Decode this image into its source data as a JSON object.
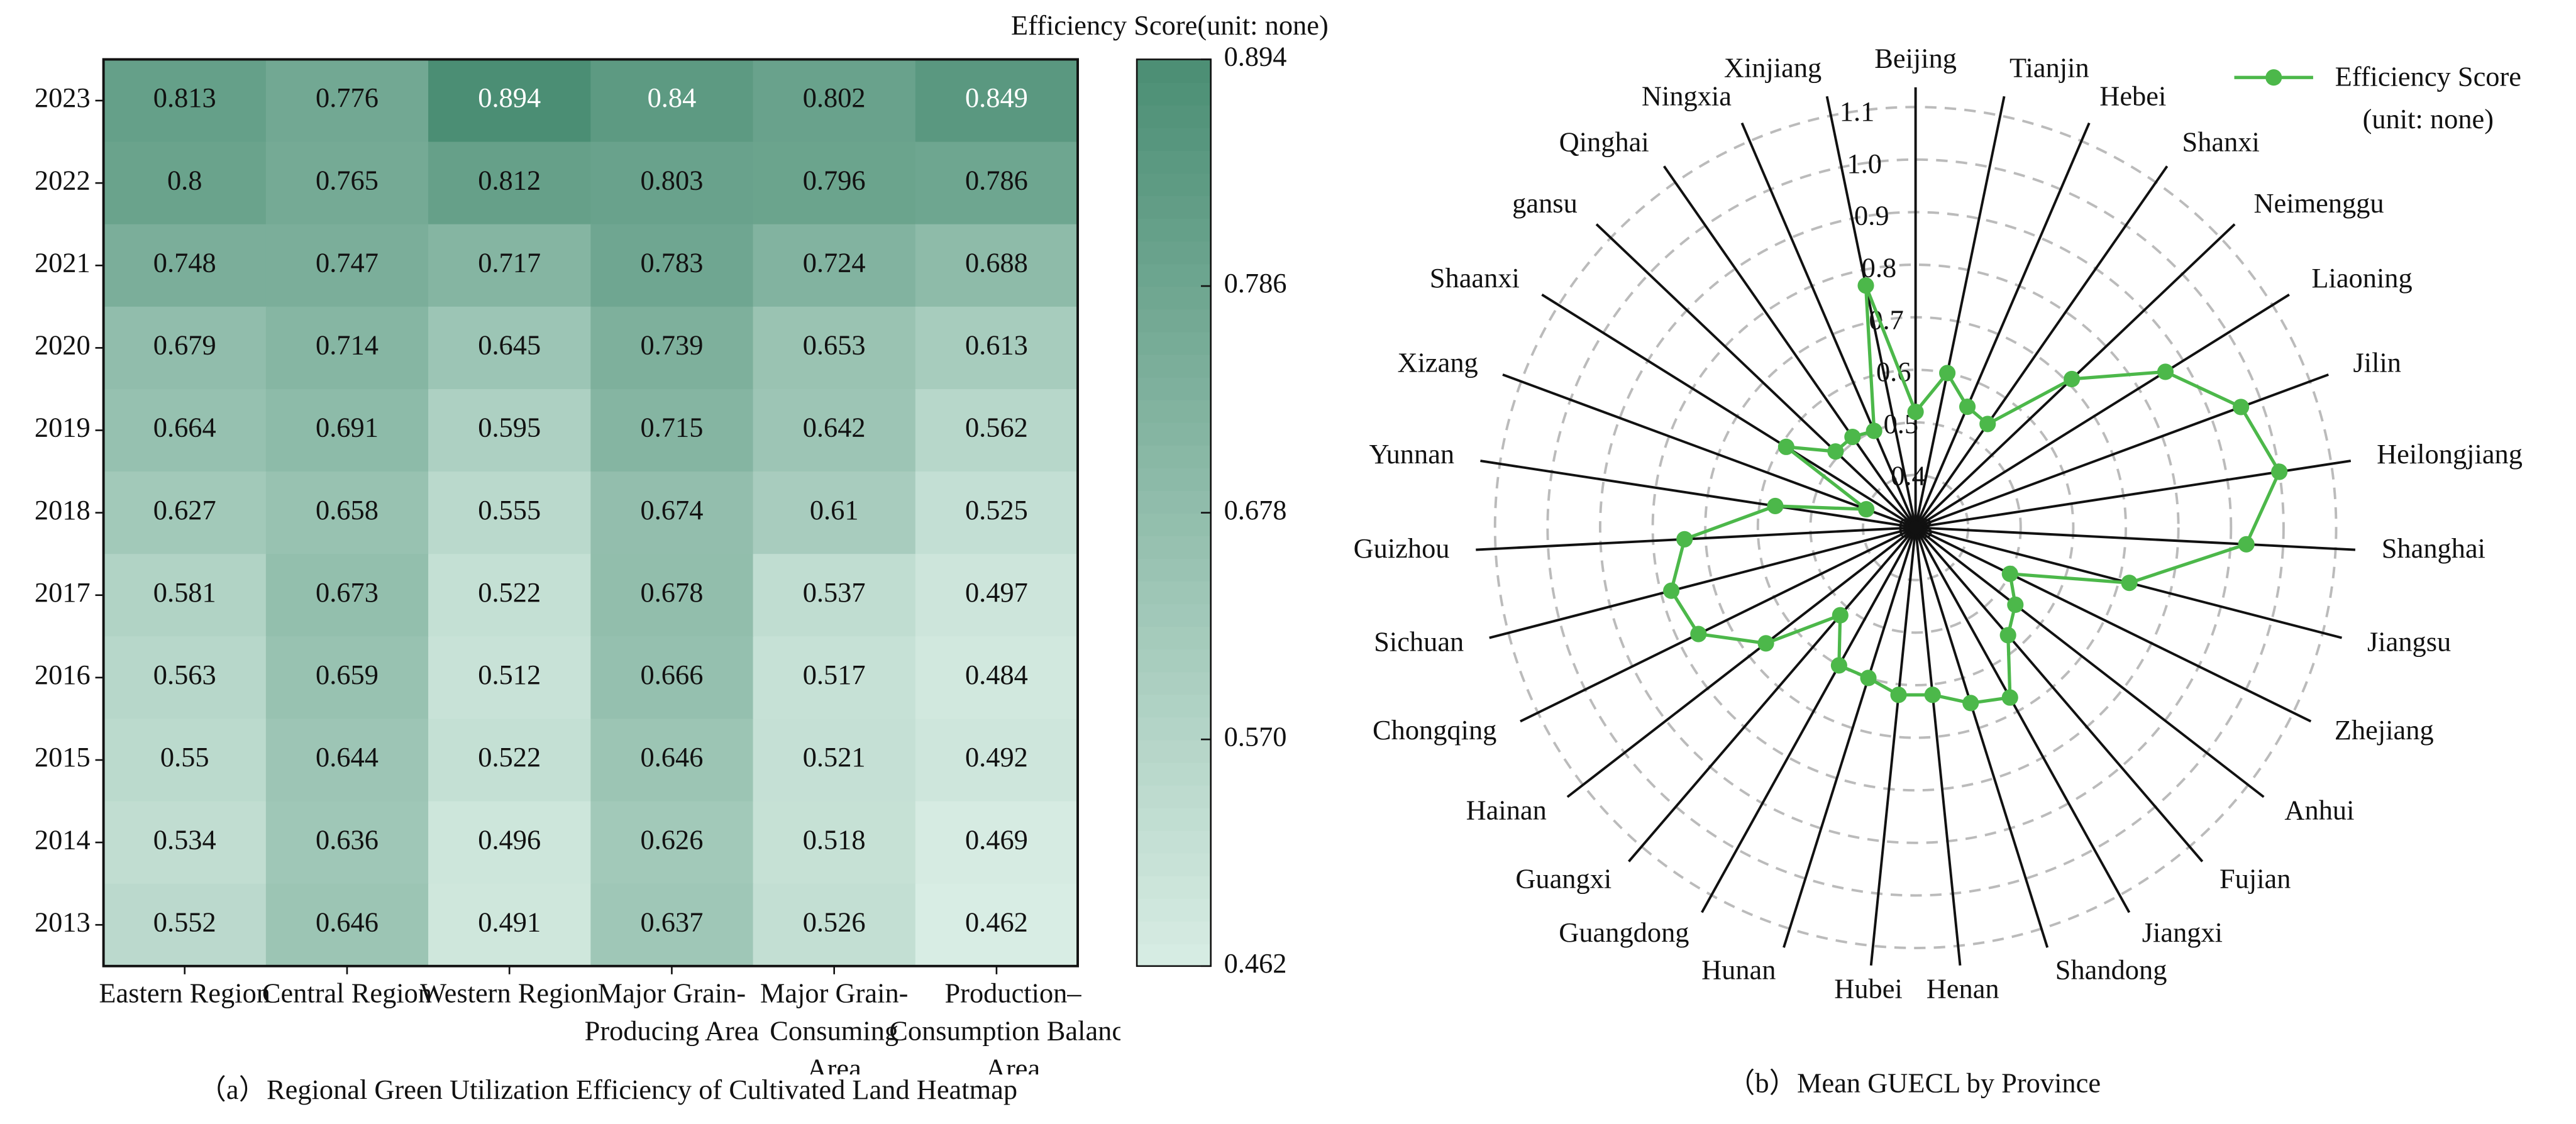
{
  "chart_data": [
    {
      "type": "heatmap",
      "caption": "（a）Regional Green Utilization Efficiency of Cultivated Land Heatmap",
      "x_categories": [
        "Eastern Region",
        "Central Region",
        "Western Region",
        "Major Grain-Producing Area",
        "Major Grain-Consuming Area",
        "Production–Consumption Balance Area"
      ],
      "y_categories": [
        "2023",
        "2022",
        "2021",
        "2020",
        "2019",
        "2018",
        "2017",
        "2016",
        "2015",
        "2014",
        "2013"
      ],
      "values": [
        [
          0.813,
          0.776,
          0.894,
          0.84,
          0.802,
          0.849
        ],
        [
          0.8,
          0.765,
          0.812,
          0.803,
          0.796,
          0.786
        ],
        [
          0.748,
          0.747,
          0.717,
          0.783,
          0.724,
          0.688
        ],
        [
          0.679,
          0.714,
          0.645,
          0.739,
          0.653,
          0.613
        ],
        [
          0.664,
          0.691,
          0.595,
          0.715,
          0.642,
          0.562
        ],
        [
          0.627,
          0.658,
          0.555,
          0.674,
          0.61,
          0.525
        ],
        [
          0.581,
          0.673,
          0.522,
          0.678,
          0.537,
          0.497
        ],
        [
          0.563,
          0.659,
          0.512,
          0.666,
          0.517,
          0.484
        ],
        [
          0.55,
          0.644,
          0.522,
          0.646,
          0.521,
          0.492
        ],
        [
          0.534,
          0.636,
          0.496,
          0.626,
          0.518,
          0.469
        ],
        [
          0.552,
          0.646,
          0.491,
          0.637,
          0.526,
          0.462
        ]
      ],
      "colorbar_label": "Efficiency Score(unit: none)",
      "clim": [
        0.462,
        0.894
      ],
      "cticks": [
        0.462,
        {
          "value": 0.57,
          "label": "0.570"
        },
        0.678,
        0.786,
        0.894
      ],
      "cmap": [
        "#d8ede4",
        "#4b8e74"
      ]
    },
    {
      "type": "radar",
      "caption": "（b）Mean GUECL by Province",
      "categories": [
        "Beijing",
        "Tianjin",
        "Hebei",
        "Shanxi",
        "Neimenggu",
        "Liaoning",
        "Jilin",
        "Heilongjiang",
        "Shanghai",
        "Jiangsu",
        "Zhejiang",
        "Anhui",
        "Fujian",
        "Jiangxi",
        "Shandong",
        "Henan",
        "Hubei",
        "Hunan",
        "Guangdong",
        "Guangxi",
        "Hainan",
        "Chongqing",
        "Sichuan",
        "Guizhou",
        "Yunnan",
        "Xizang",
        "Shaanxi",
        "gansu",
        "Qinghai",
        "Ningxia",
        "Xinjiang"
      ],
      "series": [
        {
          "name": "Efficiency Score (unit: none)",
          "color": "#4cb84a",
          "values": [
            0.52,
            0.6,
            0.55,
            0.54,
            0.71,
            0.86,
            0.96,
            1.0,
            0.93,
            0.72,
            0.5,
            0.54,
            0.57,
            0.67,
            0.65,
            0.62,
            0.62,
            0.6,
            0.6,
            0.52,
            0.66,
            0.76,
            0.78,
            0.74,
            0.57,
            0.4,
            0.59,
            0.51,
            0.51,
            0.5,
            0.77
          ]
        }
      ],
      "rlim": [
        0.3,
        1.1
      ],
      "rticks": [
        0.3,
        0.4,
        0.5,
        0.6,
        0.7,
        0.8,
        0.9,
        {
          "value": 1.0,
          "label": "1.0"
        },
        1.1
      ],
      "legend": "upper right"
    }
  ]
}
